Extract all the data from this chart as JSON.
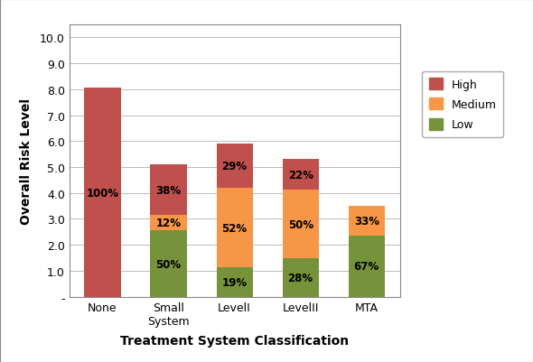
{
  "categories": [
    "None",
    "Small\nSystem",
    "LevelI",
    "LevelII",
    "MTA"
  ],
  "low_values": [
    0.0,
    2.55,
    1.12,
    1.48,
    2.35
  ],
  "medium_values": [
    0.0,
    0.61,
    3.07,
    2.65,
    1.16
  ],
  "high_values": [
    8.05,
    1.94,
    1.71,
    1.17,
    0.0
  ],
  "low_pct": [
    "",
    "50%",
    "19%",
    "28%",
    "67%"
  ],
  "medium_pct": [
    "",
    "12%",
    "52%",
    "50%",
    "33%"
  ],
  "high_pct": [
    "100%",
    "38%",
    "29%",
    "22%",
    ""
  ],
  "low_color": "#76933C",
  "medium_color": "#F79646",
  "high_color": "#C0504D",
  "xlabel": "Treatment System Classification",
  "ylabel": "Overall Risk Level",
  "yticks": [
    0,
    1.0,
    2.0,
    3.0,
    4.0,
    5.0,
    6.0,
    7.0,
    8.0,
    9.0,
    10.0
  ],
  "ytick_labels": [
    "-",
    "1.0",
    "2.0",
    "3.0",
    "4.0",
    "5.0",
    "6.0",
    "7.0",
    "8.0",
    "9.0",
    "10.0"
  ],
  "ylim": [
    0,
    10.5
  ],
  "legend_labels": [
    "High",
    "Medium",
    "Low"
  ],
  "bar_width": 0.55,
  "background_color": "#ffffff",
  "grid_color": "#bbbbbb",
  "figure_edgecolor": "#aaaaaa"
}
